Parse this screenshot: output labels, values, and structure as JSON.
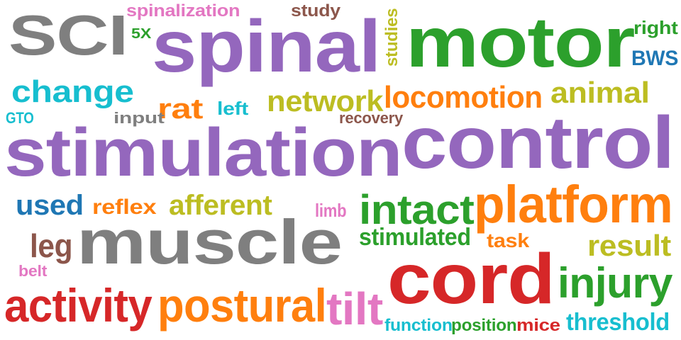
{
  "word_cloud": {
    "colors": {
      "gray": "#7f7f7f",
      "purple": "#9467bd",
      "green": "#2ca02c",
      "pink": "#e377c2",
      "brown": "#8c564b",
      "cyan": "#17becf",
      "blue": "#1f77b4",
      "orange": "#ff7f0e",
      "red": "#d62728",
      "olive": "#bcbd22"
    },
    "words": [
      {
        "text": "SCI",
        "color": "gray"
      },
      {
        "text": "spinal",
        "color": "purple"
      },
      {
        "text": "spinalization",
        "color": "pink"
      },
      {
        "text": "study",
        "color": "brown"
      },
      {
        "text": "studies",
        "color": "olive"
      },
      {
        "text": "motor",
        "color": "green"
      },
      {
        "text": "right",
        "color": "green"
      },
      {
        "text": "5X",
        "color": "green"
      },
      {
        "text": "BWS",
        "color": "blue"
      },
      {
        "text": "change",
        "color": "cyan"
      },
      {
        "text": "network",
        "color": "olive"
      },
      {
        "text": "locomotion",
        "color": "orange"
      },
      {
        "text": "animal",
        "color": "olive"
      },
      {
        "text": "rat",
        "color": "orange"
      },
      {
        "text": "left",
        "color": "cyan"
      },
      {
        "text": "GTO",
        "color": "cyan"
      },
      {
        "text": "input",
        "color": "gray"
      },
      {
        "text": "recovery",
        "color": "brown"
      },
      {
        "text": "stimulation",
        "color": "purple"
      },
      {
        "text": "control",
        "color": "purple"
      },
      {
        "text": "used",
        "color": "blue"
      },
      {
        "text": "reflex",
        "color": "orange"
      },
      {
        "text": "afferent",
        "color": "olive"
      },
      {
        "text": "limb",
        "color": "pink"
      },
      {
        "text": "intact",
        "color": "green"
      },
      {
        "text": "platform",
        "color": "orange"
      },
      {
        "text": "leg",
        "color": "brown"
      },
      {
        "text": "muscle",
        "color": "gray"
      },
      {
        "text": "stimulated",
        "color": "green"
      },
      {
        "text": "task",
        "color": "orange"
      },
      {
        "text": "result",
        "color": "olive"
      },
      {
        "text": "belt",
        "color": "pink"
      },
      {
        "text": "cord",
        "color": "red"
      },
      {
        "text": "injury",
        "color": "green"
      },
      {
        "text": "activity",
        "color": "red"
      },
      {
        "text": "postural",
        "color": "orange"
      },
      {
        "text": "tilt",
        "color": "pink"
      },
      {
        "text": "function",
        "color": "cyan"
      },
      {
        "text": "position",
        "color": "green"
      },
      {
        "text": "mice",
        "color": "red"
      },
      {
        "text": "threshold",
        "color": "cyan"
      }
    ]
  }
}
